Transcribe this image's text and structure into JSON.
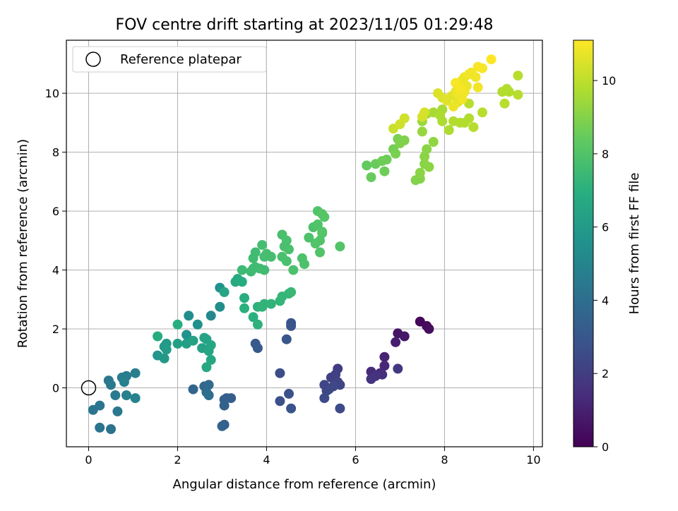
{
  "chart_data": {
    "type": "scatter",
    "title": "FOV centre drift starting at 2023/11/05 01:29:48",
    "xlabel": "Angular distance from reference (arcmin)",
    "ylabel": "Rotation from reference (arcmin)",
    "xlim": [
      -0.5,
      10.2
    ],
    "ylim": [
      -2.0,
      11.8
    ],
    "xticks": [
      "0",
      "2",
      "4",
      "6",
      "8",
      "10"
    ],
    "yticks": [
      "0",
      "2",
      "4",
      "6",
      "8",
      "10"
    ],
    "xtick_values": [
      0,
      2,
      4,
      6,
      8,
      10
    ],
    "ytick_values": [
      0,
      2,
      4,
      6,
      8,
      10
    ],
    "grid": true,
    "legend": {
      "position": "top-left",
      "entries": [
        "Reference platepar"
      ]
    },
    "reference_point": [
      0,
      0
    ],
    "colorbar": {
      "label": "Hours from first FF file",
      "ticks": [
        "0",
        "2",
        "4",
        "6",
        "8",
        "10"
      ],
      "tick_values": [
        0,
        2,
        4,
        6,
        8,
        10
      ],
      "range": [
        0,
        11.1
      ],
      "colormap": "viridis"
    },
    "points": [
      [
        7.45,
        2.25,
        0.2
      ],
      [
        7.6,
        2.1,
        0.3
      ],
      [
        7.65,
        2.0,
        0.4
      ],
      [
        6.95,
        1.85,
        0.6
      ],
      [
        7.1,
        1.75,
        0.7
      ],
      [
        6.9,
        1.55,
        0.9
      ],
      [
        6.65,
        1.05,
        1.1
      ],
      [
        6.65,
        0.75,
        1.2
      ],
      [
        6.35,
        0.55,
        1.3
      ],
      [
        6.55,
        0.5,
        1.4
      ],
      [
        6.6,
        0.45,
        1.5
      ],
      [
        6.45,
        0.4,
        1.6
      ],
      [
        6.35,
        0.3,
        1.7
      ],
      [
        6.95,
        0.65,
        1.8
      ],
      [
        5.6,
        0.65,
        2.0
      ],
      [
        5.55,
        0.45,
        2.1
      ],
      [
        5.45,
        0.35,
        2.1
      ],
      [
        5.6,
        0.2,
        2.2
      ],
      [
        5.65,
        0.1,
        2.2
      ],
      [
        5.3,
        0.1,
        2.3
      ],
      [
        5.4,
        -0.05,
        2.3
      ],
      [
        5.35,
        -0.1,
        2.4
      ],
      [
        5.5,
        0.05,
        2.4
      ],
      [
        5.3,
        -0.35,
        2.5
      ],
      [
        5.65,
        -0.7,
        2.5
      ],
      [
        4.3,
        0.5,
        2.6
      ],
      [
        4.5,
        -0.2,
        2.7
      ],
      [
        4.3,
        -0.45,
        2.7
      ],
      [
        4.55,
        -0.7,
        2.8
      ],
      [
        4.55,
        2.2,
        2.9
      ],
      [
        4.55,
        2.1,
        2.9
      ],
      [
        4.45,
        1.65,
        3.0
      ],
      [
        3.75,
        1.5,
        3.1
      ],
      [
        3.8,
        1.35,
        3.1
      ],
      [
        3.1,
        -0.35,
        3.2
      ],
      [
        3.05,
        -0.4,
        3.3
      ],
      [
        3.2,
        -0.35,
        3.3
      ],
      [
        3.05,
        -0.6,
        3.4
      ],
      [
        3.05,
        -1.25,
        3.4
      ],
      [
        3.0,
        -1.3,
        3.5
      ],
      [
        2.35,
        -0.05,
        3.6
      ],
      [
        2.6,
        0.05,
        3.7
      ],
      [
        2.7,
        0.1,
        3.8
      ],
      [
        2.65,
        -0.15,
        3.9
      ],
      [
        2.7,
        -0.25,
        4.0
      ],
      [
        0.45,
        0.25,
        4.4
      ],
      [
        0.5,
        0.1,
        4.5
      ],
      [
        0.6,
        -0.25,
        4.5
      ],
      [
        0.85,
        0.4,
        4.6
      ],
      [
        0.8,
        0.3,
        4.6
      ],
      [
        0.75,
        0.35,
        4.7
      ],
      [
        1.05,
        0.5,
        4.7
      ],
      [
        0.8,
        0.2,
        4.8
      ],
      [
        0.85,
        -0.25,
        4.8
      ],
      [
        1.05,
        -0.35,
        4.9
      ],
      [
        0.1,
        -0.75,
        4.3
      ],
      [
        0.25,
        -0.6,
        4.3
      ],
      [
        0.65,
        -0.8,
        4.4
      ],
      [
        0.25,
        -1.35,
        4.2
      ],
      [
        0.5,
        -1.4,
        4.2
      ],
      [
        2.25,
        2.45,
        5.4
      ],
      [
        2.45,
        2.15,
        5.5
      ],
      [
        2.2,
        1.8,
        5.6
      ],
      [
        2.75,
        2.45,
        5.2
      ],
      [
        2.95,
        2.75,
        5.4
      ],
      [
        2.95,
        3.4,
        5.6
      ],
      [
        1.55,
        1.1,
        5.8
      ],
      [
        1.7,
        1.0,
        5.9
      ],
      [
        1.7,
        1.4,
        6.0
      ],
      [
        1.75,
        1.5,
        6.0
      ],
      [
        1.75,
        1.3,
        6.1
      ],
      [
        2.0,
        1.5,
        6.2
      ],
      [
        2.2,
        1.5,
        6.2
      ],
      [
        2.35,
        1.6,
        6.3
      ],
      [
        2.55,
        1.35,
        6.3
      ],
      [
        2.6,
        1.7,
        6.4
      ],
      [
        2.65,
        1.65,
        6.4
      ],
      [
        2.7,
        1.25,
        6.5
      ],
      [
        2.75,
        1.45,
        6.5
      ],
      [
        2.75,
        0.95,
        6.6
      ],
      [
        2.65,
        0.7,
        6.6
      ],
      [
        1.55,
        1.75,
        6.8
      ],
      [
        2.0,
        2.15,
        6.9
      ],
      [
        3.05,
        3.25,
        6.5
      ],
      [
        3.3,
        3.6,
        6.7
      ],
      [
        3.35,
        3.7,
        6.7
      ],
      [
        3.45,
        3.6,
        6.8
      ],
      [
        3.5,
        3.05,
        6.9
      ],
      [
        3.5,
        2.7,
        7.0
      ],
      [
        3.7,
        2.4,
        7.0
      ],
      [
        3.8,
        2.15,
        7.1
      ],
      [
        3.8,
        2.75,
        7.1
      ],
      [
        3.95,
        2.85,
        7.2
      ],
      [
        3.9,
        2.75,
        7.2
      ],
      [
        4.1,
        2.85,
        7.2
      ],
      [
        4.3,
        2.95,
        7.3
      ],
      [
        4.35,
        3.1,
        7.3
      ],
      [
        4.5,
        3.2,
        7.3
      ],
      [
        4.55,
        3.25,
        7.4
      ],
      [
        3.45,
        4.0,
        7.5
      ],
      [
        3.65,
        3.95,
        7.5
      ],
      [
        3.7,
        4.05,
        7.6
      ],
      [
        3.75,
        4.1,
        7.6
      ],
      [
        3.85,
        4.05,
        7.6
      ],
      [
        3.95,
        4.0,
        7.6
      ],
      [
        3.7,
        4.4,
        7.6
      ],
      [
        3.75,
        4.6,
        7.6
      ],
      [
        3.95,
        4.45,
        7.7
      ],
      [
        4.0,
        4.55,
        7.7
      ],
      [
        4.1,
        4.45,
        7.7
      ],
      [
        3.9,
        4.85,
        7.7
      ],
      [
        4.35,
        4.45,
        7.8
      ],
      [
        4.45,
        4.3,
        7.8
      ],
      [
        4.4,
        4.8,
        7.8
      ],
      [
        4.5,
        4.7,
        7.8
      ],
      [
        4.45,
        5.0,
        7.8
      ],
      [
        4.35,
        5.2,
        7.8
      ],
      [
        4.6,
        4.0,
        7.9
      ],
      [
        4.8,
        4.4,
        7.9
      ],
      [
        4.85,
        4.2,
        7.9
      ],
      [
        4.95,
        5.1,
        7.9
      ],
      [
        5.05,
        5.45,
        7.9
      ],
      [
        5.15,
        5.55,
        8.0
      ],
      [
        5.25,
        5.25,
        8.0
      ],
      [
        5.2,
        5.0,
        8.0
      ],
      [
        5.1,
        4.9,
        8.0
      ],
      [
        5.2,
        4.6,
        8.0
      ],
      [
        5.15,
        6.0,
        8.0
      ],
      [
        5.25,
        5.9,
        8.1
      ],
      [
        5.3,
        5.8,
        8.1
      ],
      [
        5.25,
        5.3,
        8.1
      ],
      [
        5.65,
        4.8,
        8.0
      ],
      [
        6.25,
        7.55,
        8.4
      ],
      [
        6.35,
        7.15,
        8.5
      ],
      [
        6.45,
        7.6,
        8.5
      ],
      [
        6.6,
        7.7,
        8.6
      ],
      [
        6.65,
        7.35,
        8.6
      ],
      [
        6.7,
        7.75,
        8.6
      ],
      [
        6.85,
        8.1,
        8.7
      ],
      [
        6.9,
        7.95,
        8.8
      ],
      [
        6.95,
        8.45,
        8.8
      ],
      [
        7.0,
        8.3,
        8.9
      ],
      [
        7.1,
        8.4,
        8.9
      ],
      [
        7.35,
        7.05,
        9.0
      ],
      [
        7.45,
        7.1,
        9.0
      ],
      [
        7.45,
        7.3,
        9.1
      ],
      [
        7.55,
        7.6,
        9.1
      ],
      [
        7.65,
        7.5,
        9.1
      ],
      [
        7.55,
        7.85,
        9.1
      ],
      [
        7.6,
        8.1,
        9.1
      ],
      [
        7.75,
        8.35,
        9.2
      ],
      [
        7.5,
        8.7,
        9.3
      ],
      [
        7.5,
        9.05,
        9.4
      ],
      [
        7.6,
        9.3,
        9.5
      ],
      [
        7.75,
        9.35,
        9.6
      ],
      [
        7.95,
        9.45,
        9.6
      ],
      [
        7.9,
        9.25,
        9.7
      ],
      [
        7.95,
        9.05,
        9.7
      ],
      [
        8.1,
        8.75,
        9.7
      ],
      [
        8.2,
        9.05,
        9.8
      ],
      [
        8.35,
        9.0,
        9.8
      ],
      [
        8.45,
        9.0,
        9.8
      ],
      [
        8.55,
        9.15,
        9.8
      ],
      [
        8.65,
        8.85,
        9.9
      ],
      [
        8.85,
        9.35,
        9.9
      ],
      [
        8.55,
        9.65,
        9.9
      ],
      [
        9.3,
        10.05,
        9.8
      ],
      [
        9.4,
        10.15,
        9.8
      ],
      [
        9.45,
        10.05,
        9.8
      ],
      [
        9.35,
        9.65,
        9.9
      ],
      [
        9.65,
        10.6,
        9.9
      ],
      [
        9.65,
        9.95,
        9.9
      ],
      [
        6.85,
        8.8,
        10.2
      ],
      [
        7.0,
        8.95,
        10.3
      ],
      [
        7.1,
        9.15,
        10.3
      ],
      [
        7.5,
        9.2,
        10.4
      ],
      [
        7.55,
        9.35,
        10.4
      ],
      [
        7.85,
        10.0,
        10.5
      ],
      [
        7.95,
        9.85,
        10.5
      ],
      [
        8.05,
        9.75,
        10.6
      ],
      [
        8.15,
        9.9,
        10.6
      ],
      [
        8.25,
        10.05,
        10.7
      ],
      [
        8.3,
        9.7,
        10.7
      ],
      [
        8.35,
        10.25,
        10.7
      ],
      [
        8.4,
        10.45,
        10.8
      ],
      [
        8.45,
        10.55,
        10.8
      ],
      [
        8.5,
        10.25,
        10.8
      ],
      [
        8.55,
        10.65,
        10.9
      ],
      [
        8.6,
        10.7,
        10.9
      ],
      [
        8.7,
        10.55,
        10.9
      ],
      [
        8.75,
        10.9,
        11.0
      ],
      [
        8.85,
        10.85,
        11.0
      ],
      [
        9.05,
        11.15,
        11.1
      ],
      [
        8.75,
        10.2,
        10.9
      ],
      [
        8.2,
        9.55,
        10.8
      ],
      [
        8.3,
        10.0,
        10.9
      ],
      [
        8.4,
        9.8,
        10.9
      ],
      [
        8.45,
        10.05,
        10.9
      ],
      [
        8.35,
        10.15,
        11.0
      ],
      [
        8.25,
        10.35,
        11.0
      ]
    ]
  }
}
